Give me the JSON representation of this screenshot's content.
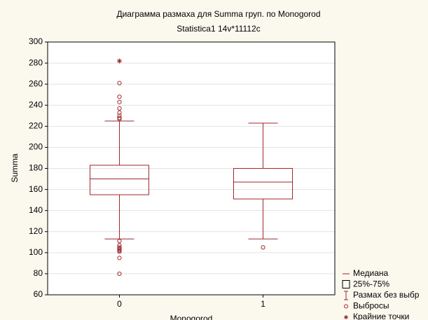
{
  "chart_data": {
    "type": "box",
    "title": "Диаграмма размаха для Summa груп. по Monogorod",
    "subtitle": "Statistica1 14v*11112c",
    "x_label": "Monogorod",
    "y_label": "Summa",
    "categories": [
      "0",
      "1"
    ],
    "color": "#a0282b",
    "ylim": [
      60,
      300
    ],
    "yticks": [
      60,
      80,
      100,
      120,
      140,
      160,
      180,
      200,
      220,
      240,
      260,
      280,
      300
    ],
    "grid": true,
    "boxes": [
      {
        "whisker_low": 113,
        "q1": 155,
        "median": 170,
        "q3": 183,
        "whisker_high": 225,
        "outliers": [
          261,
          248,
          243,
          237,
          233,
          230,
          228,
          227,
          111,
          107,
          105,
          104,
          103,
          102,
          101,
          95,
          80
        ],
        "extremes": [
          282
        ]
      },
      {
        "whisker_low": 113,
        "q1": 151,
        "median": 167,
        "q3": 180,
        "whisker_high": 223,
        "outliers": [
          105
        ],
        "extremes": []
      }
    ],
    "legend": [
      "Медиана",
      "25%-75%",
      "Размах без выбр",
      "Выбросы",
      "Крайние точки"
    ]
  }
}
